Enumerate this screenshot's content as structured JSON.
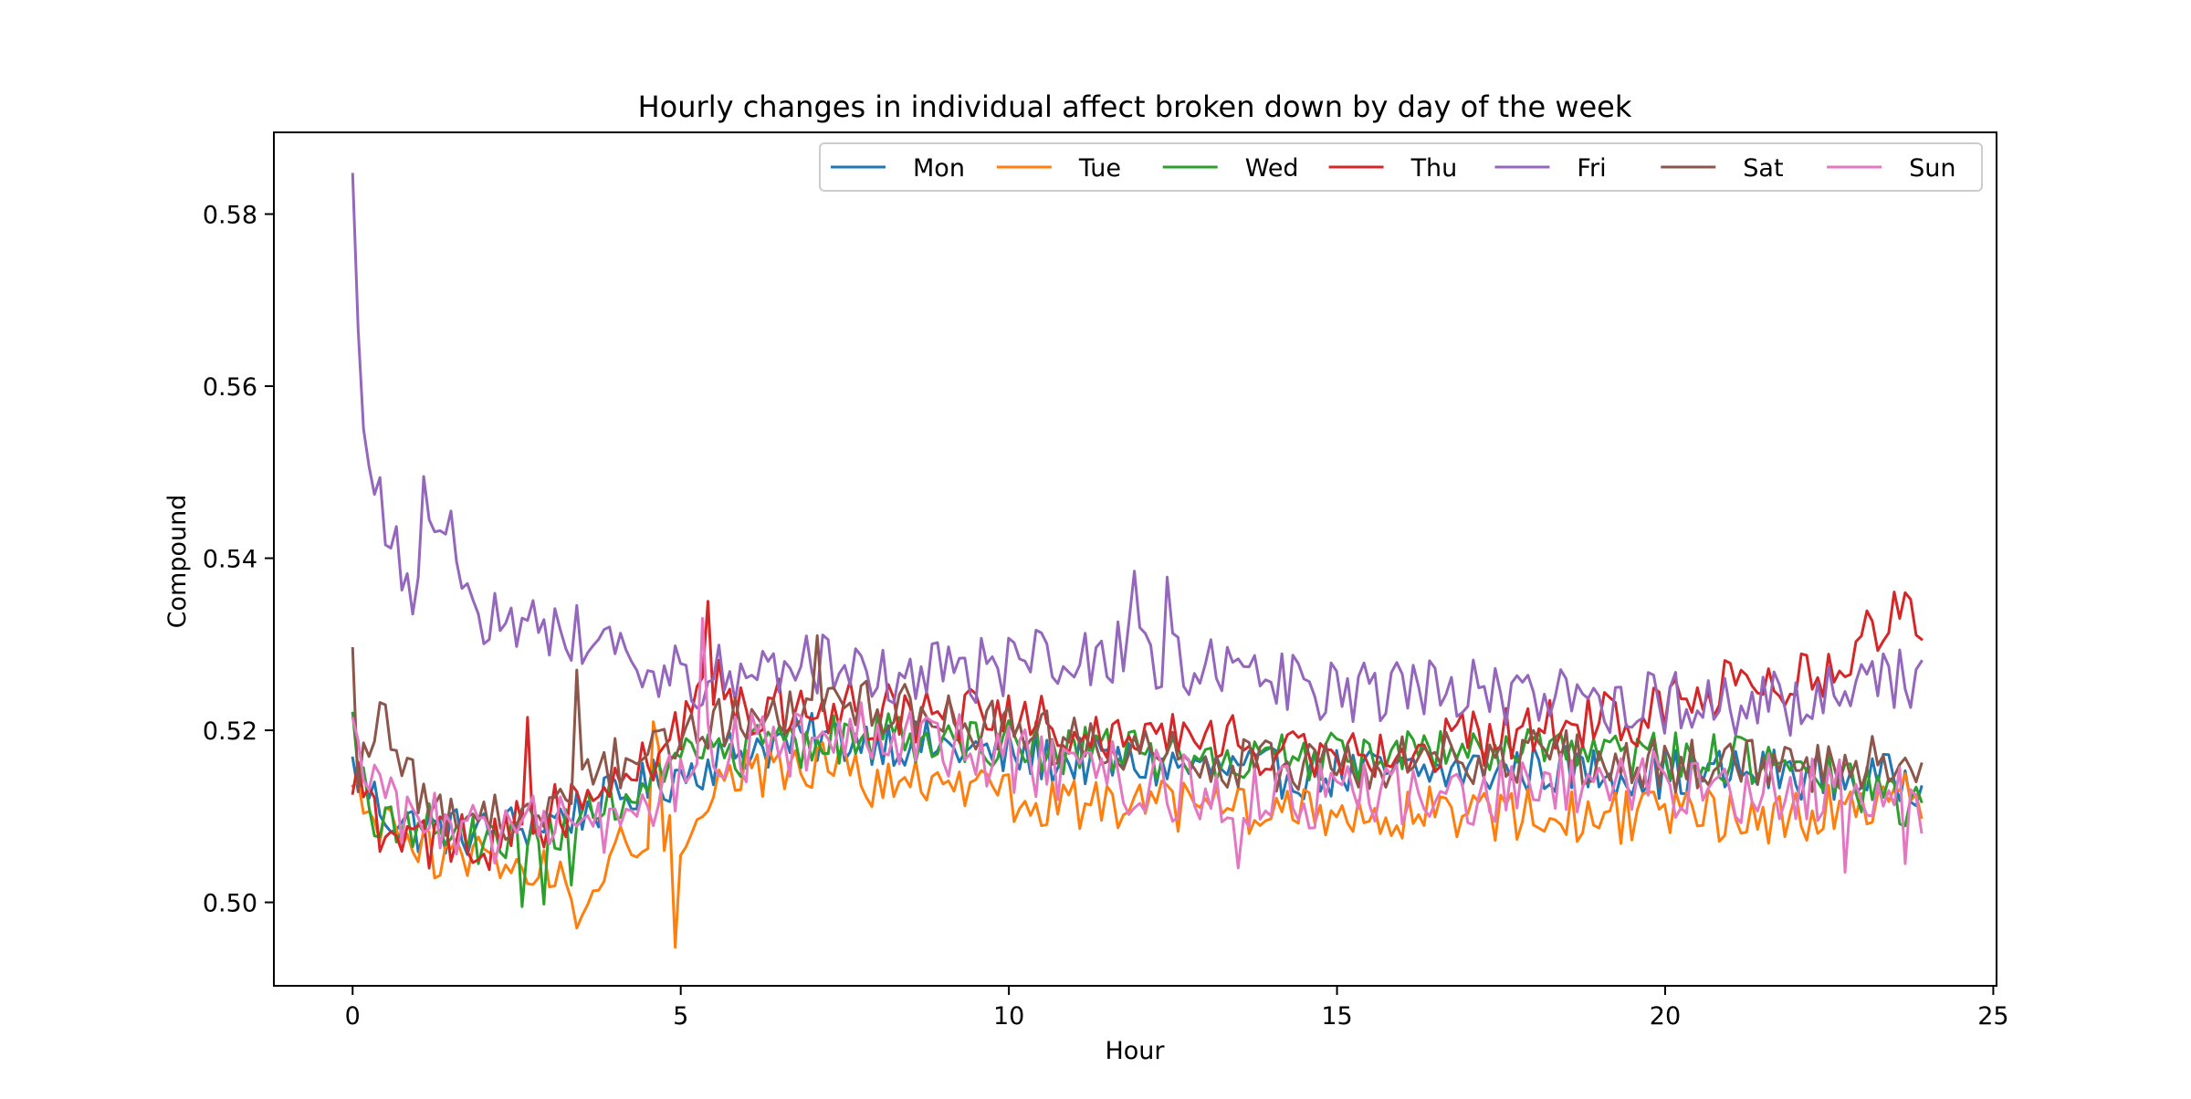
{
  "chart_data": {
    "type": "line",
    "title": "Hourly changes in individual affect broken down by day of the week",
    "xlabel": "Hour",
    "ylabel": "Compound",
    "xlim": [
      -1.2,
      25.05
    ],
    "ylim": [
      0.4903,
      0.5895
    ],
    "xticks": [
      0,
      5,
      10,
      15,
      20,
      25
    ],
    "xtick_labels": [
      "0",
      "5",
      "10",
      "15",
      "20",
      "25"
    ],
    "yticks": [
      0.5,
      0.52,
      0.54,
      0.56,
      0.58
    ],
    "ytick_labels": [
      "0.50",
      "0.52",
      "0.54",
      "0.56",
      "0.58"
    ],
    "grid": false,
    "legend_position": "top-right",
    "legend_columns": 7,
    "x_step_hours": 0.0833,
    "series": [
      {
        "name": "Mon",
        "color": "#1f77b4",
        "anchors": [
          [
            0,
            0.5155
          ],
          [
            0.5,
            0.5105
          ],
          [
            1,
            0.5085
          ],
          [
            2,
            0.508
          ],
          [
            3,
            0.5095
          ],
          [
            4,
            0.512
          ],
          [
            5,
            0.515
          ],
          [
            6,
            0.518
          ],
          [
            7,
            0.519
          ],
          [
            8,
            0.519
          ],
          [
            9,
            0.518
          ],
          [
            10,
            0.517
          ],
          [
            12,
            0.516
          ],
          [
            14,
            0.515
          ],
          [
            16,
            0.515
          ],
          [
            18,
            0.5155
          ],
          [
            20,
            0.515
          ],
          [
            22,
            0.515
          ],
          [
            23.9,
            0.514
          ]
        ],
        "noise": 0.003
      },
      {
        "name": "Tue",
        "color": "#ff7f0e",
        "anchors": [
          [
            0,
            0.513
          ],
          [
            0.5,
            0.508
          ],
          [
            1,
            0.506
          ],
          [
            2,
            0.505
          ],
          [
            3,
            0.5035
          ],
          [
            3.5,
            0.5
          ],
          [
            4,
            0.507
          ],
          [
            5,
            0.508
          ],
          [
            5.5,
            0.513
          ],
          [
            6,
            0.515
          ],
          [
            7,
            0.516
          ],
          [
            8,
            0.514
          ],
          [
            10,
            0.512
          ],
          [
            12,
            0.511
          ],
          [
            14,
            0.5105
          ],
          [
            16,
            0.5105
          ],
          [
            18,
            0.51
          ],
          [
            20,
            0.51
          ],
          [
            22,
            0.51
          ],
          [
            23.9,
            0.513
          ]
        ],
        "noise": 0.0032,
        "spikes": [
          [
            4.92,
            0.4948
          ],
          [
            3.4,
            0.497
          ],
          [
            3.5,
            0.4985
          ],
          [
            4.67,
            0.518
          ],
          [
            4.58,
            0.521
          ]
        ]
      },
      {
        "name": "Wed",
        "color": "#2ca02c",
        "anchors": [
          [
            0,
            0.519
          ],
          [
            0.25,
            0.51
          ],
          [
            1,
            0.509
          ],
          [
            2,
            0.507
          ],
          [
            3,
            0.508
          ],
          [
            4,
            0.512
          ],
          [
            5,
            0.516
          ],
          [
            6,
            0.5175
          ],
          [
            7,
            0.5185
          ],
          [
            8,
            0.5195
          ],
          [
            10,
            0.5185
          ],
          [
            12,
            0.517
          ],
          [
            14,
            0.5165
          ],
          [
            16,
            0.517
          ],
          [
            18,
            0.5175
          ],
          [
            20,
            0.517
          ],
          [
            22,
            0.516
          ],
          [
            23.9,
            0.511
          ]
        ],
        "noise": 0.003,
        "spikes": [
          [
            0,
            0.522
          ],
          [
            2.58,
            0.4995
          ],
          [
            2.92,
            0.4998
          ],
          [
            3.33,
            0.502
          ]
        ]
      },
      {
        "name": "Thu",
        "color": "#d62728",
        "anchors": [
          [
            0,
            0.514
          ],
          [
            0.5,
            0.508
          ],
          [
            1,
            0.507
          ],
          [
            2,
            0.507
          ],
          [
            3,
            0.51
          ],
          [
            4,
            0.514
          ],
          [
            5,
            0.52
          ],
          [
            5.5,
            0.526
          ],
          [
            6,
            0.522
          ],
          [
            7,
            0.523
          ],
          [
            8,
            0.522
          ],
          [
            10,
            0.521
          ],
          [
            12,
            0.5195
          ],
          [
            14,
            0.518
          ],
          [
            16,
            0.518
          ],
          [
            18,
            0.52
          ],
          [
            20,
            0.522
          ],
          [
            21.5,
            0.5265
          ],
          [
            22.5,
            0.526
          ],
          [
            23,
            0.532
          ],
          [
            23.5,
            0.533
          ],
          [
            23.9,
            0.5325
          ]
        ],
        "noise": 0.0035,
        "spikes": [
          [
            5.42,
            0.535
          ],
          [
            2.67,
            0.5215
          ],
          [
            23.67,
            0.536
          ]
        ]
      },
      {
        "name": "Fri",
        "color": "#9467bd",
        "anchors": [
          [
            0,
            0.585
          ],
          [
            0.08,
            0.567
          ],
          [
            0.17,
            0.555
          ],
          [
            0.33,
            0.5475
          ],
          [
            0.6,
            0.542
          ],
          [
            0.9,
            0.535
          ],
          [
            1.1,
            0.548
          ],
          [
            1.5,
            0.542
          ],
          [
            2,
            0.533
          ],
          [
            3,
            0.532
          ],
          [
            4,
            0.53
          ],
          [
            5,
            0.526
          ],
          [
            6,
            0.527
          ],
          [
            7,
            0.528
          ],
          [
            8,
            0.527
          ],
          [
            9,
            0.5265
          ],
          [
            10,
            0.5275
          ],
          [
            11,
            0.5285
          ],
          [
            12,
            0.529
          ],
          [
            13,
            0.527
          ],
          [
            14,
            0.5255
          ],
          [
            15,
            0.5245
          ],
          [
            16,
            0.525
          ],
          [
            17,
            0.5245
          ],
          [
            18,
            0.524
          ],
          [
            20,
            0.523
          ],
          [
            22,
            0.523
          ],
          [
            23,
            0.526
          ],
          [
            23.9,
            0.5255
          ]
        ],
        "noise": 0.0038,
        "spikes": [
          [
            0.92,
            0.5335
          ],
          [
            1.08,
            0.5495
          ],
          [
            11.92,
            0.5385
          ],
          [
            12.42,
            0.5378
          ]
        ]
      },
      {
        "name": "Sat",
        "color": "#8c564b",
        "anchors": [
          [
            0,
            0.529
          ],
          [
            0.08,
            0.515
          ],
          [
            0.33,
            0.521
          ],
          [
            0.6,
            0.52
          ],
          [
            1,
            0.512
          ],
          [
            2,
            0.509
          ],
          [
            3,
            0.511
          ],
          [
            4,
            0.516
          ],
          [
            5,
            0.52
          ],
          [
            6,
            0.521
          ],
          [
            7,
            0.524
          ],
          [
            8,
            0.523
          ],
          [
            9,
            0.521
          ],
          [
            10,
            0.52
          ],
          [
            12,
            0.517
          ],
          [
            14,
            0.516
          ],
          [
            16,
            0.5165
          ],
          [
            18,
            0.517
          ],
          [
            20,
            0.516
          ],
          [
            22,
            0.5155
          ],
          [
            23.9,
            0.5165
          ]
        ],
        "noise": 0.0032,
        "spikes": [
          [
            0,
            0.5295
          ],
          [
            3.42,
            0.527
          ],
          [
            7.08,
            0.531
          ]
        ]
      },
      {
        "name": "Sun",
        "color": "#e377c2",
        "anchors": [
          [
            0,
            0.518
          ],
          [
            0.5,
            0.511
          ],
          [
            1,
            0.51
          ],
          [
            2,
            0.508
          ],
          [
            3,
            0.5085
          ],
          [
            4,
            0.51
          ],
          [
            5,
            0.514
          ],
          [
            5.5,
            0.519
          ],
          [
            6,
            0.518
          ],
          [
            7,
            0.519
          ],
          [
            8,
            0.52
          ],
          [
            10,
            0.517
          ],
          [
            12,
            0.514
          ],
          [
            14,
            0.512
          ],
          [
            16,
            0.512
          ],
          [
            18,
            0.513
          ],
          [
            20,
            0.514
          ],
          [
            22,
            0.513
          ],
          [
            23.9,
            0.512
          ]
        ],
        "noise": 0.0042,
        "spikes": [
          [
            5.33,
            0.533
          ],
          [
            13.5,
            0.504
          ],
          [
            22.75,
            0.5035
          ],
          [
            23.67,
            0.5045
          ]
        ]
      }
    ]
  }
}
